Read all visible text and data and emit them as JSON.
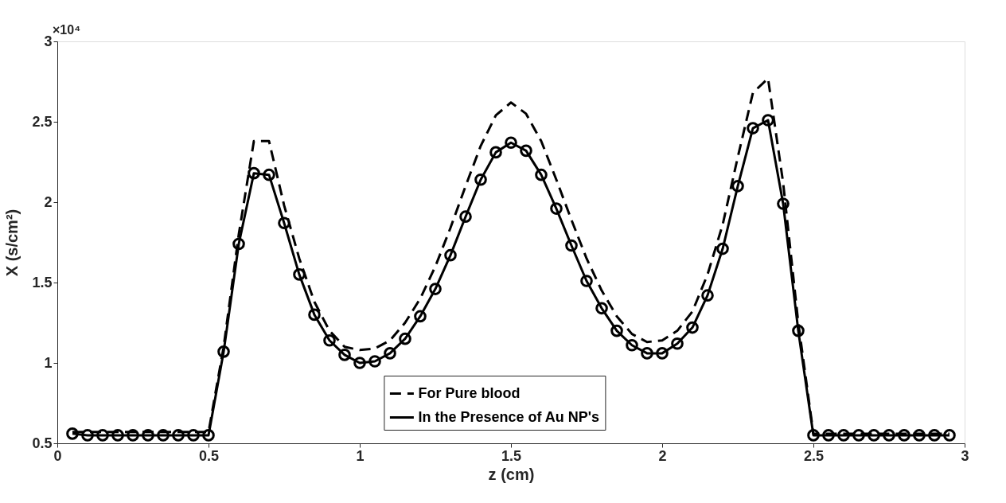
{
  "chart_data": {
    "type": "line",
    "xlabel": "z (cm)",
    "ylabel": "X (s/cm²)",
    "x": [
      0.05,
      0.1,
      0.15,
      0.2,
      0.25,
      0.3,
      0.35,
      0.4,
      0.45,
      0.5,
      0.55,
      0.6,
      0.65,
      0.7,
      0.75,
      0.8,
      0.85,
      0.9,
      0.95,
      1.0,
      1.05,
      1.1,
      1.15,
      1.2,
      1.25,
      1.3,
      1.35,
      1.4,
      1.45,
      1.5,
      1.55,
      1.6,
      1.65,
      1.7,
      1.75,
      1.8,
      1.85,
      1.9,
      1.95,
      2.0,
      2.05,
      2.1,
      2.15,
      2.2,
      2.25,
      2.3,
      2.35,
      2.4,
      2.45,
      2.5,
      2.55,
      2.6,
      2.65,
      2.7,
      2.75,
      2.8,
      2.85,
      2.9,
      2.95
    ],
    "series": [
      {
        "name": "For Pure blood",
        "color": "#000000",
        "line_style": "dashed",
        "marker": "none",
        "values": [
          0.57,
          0.57,
          0.57,
          0.57,
          0.57,
          0.57,
          0.57,
          0.57,
          0.57,
          0.57,
          1.1,
          1.8,
          2.38,
          2.38,
          1.98,
          1.65,
          1.38,
          1.2,
          1.1,
          1.08,
          1.09,
          1.14,
          1.25,
          1.4,
          1.6,
          1.84,
          2.1,
          2.35,
          2.54,
          2.62,
          2.55,
          2.38,
          2.14,
          1.89,
          1.65,
          1.45,
          1.29,
          1.18,
          1.13,
          1.14,
          1.2,
          1.32,
          1.55,
          1.86,
          2.28,
          2.68,
          2.77,
          2.12,
          1.25,
          0.56,
          0.56,
          0.56,
          0.56,
          0.56,
          0.56,
          0.56,
          0.56,
          0.56,
          0.56
        ]
      },
      {
        "name": "In the Presence of Au NP's",
        "color": "#000000",
        "line_style": "solid",
        "marker": "circle",
        "values": [
          0.56,
          0.55,
          0.55,
          0.55,
          0.55,
          0.55,
          0.55,
          0.55,
          0.55,
          0.55,
          1.07,
          1.74,
          2.18,
          2.17,
          1.87,
          1.55,
          1.3,
          1.14,
          1.05,
          1.0,
          1.01,
          1.06,
          1.15,
          1.29,
          1.46,
          1.67,
          1.91,
          2.14,
          2.31,
          2.37,
          2.32,
          2.17,
          1.96,
          1.73,
          1.51,
          1.34,
          1.2,
          1.11,
          1.06,
          1.06,
          1.12,
          1.22,
          1.42,
          1.71,
          2.1,
          2.46,
          2.51,
          1.99,
          1.2,
          0.55,
          0.55,
          0.55,
          0.55,
          0.55,
          0.55,
          0.55,
          0.55,
          0.55,
          0.55
        ]
      }
    ],
    "xlim": [
      0,
      3
    ],
    "xticks": [
      0,
      0.5,
      1,
      1.5,
      2,
      2.5,
      3
    ],
    "ylim": [
      0.5,
      3
    ],
    "yticks": [
      0.5,
      1,
      1.5,
      2,
      2.5,
      3
    ],
    "annotations": [
      "×10⁴"
    ],
    "grid": false,
    "legend": "bottom"
  }
}
